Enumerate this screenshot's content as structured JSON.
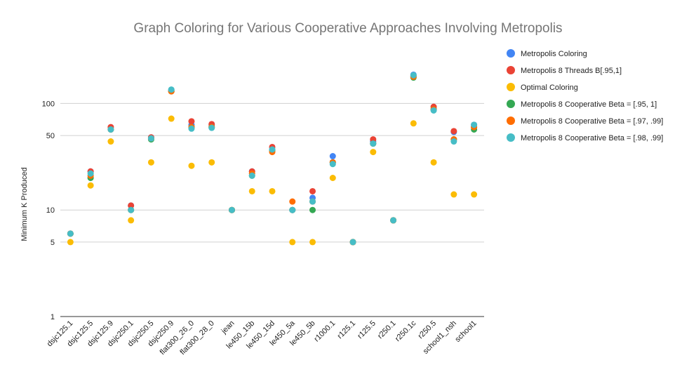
{
  "chart_data": {
    "type": "scatter",
    "title": "Graph Coloring for Various Cooperative Approaches Involving Metropolis",
    "xlabel": "",
    "ylabel": "Minimum K Produced",
    "yscale": "log",
    "ylim": [
      1,
      300
    ],
    "yticks": [
      1,
      5,
      10,
      50,
      100
    ],
    "grid": true,
    "legend_position": "right",
    "categories": [
      "dsjc125.1",
      "dsjc125.5",
      "dsjc125.9",
      "dsjc250.1",
      "dsjc250.5",
      "dsjc250.9",
      "flat300_26_0",
      "flat300_28_0",
      "jean",
      "le450_15b",
      "le450_15d",
      "le450_5a",
      "le450_5b",
      "r1000.1",
      "r125.1",
      "r125.5",
      "r250.1",
      "r250.1c",
      "r250.5",
      "school1_nsh",
      "school1"
    ],
    "series": [
      {
        "name": "Metropolis Coloring",
        "color": "#4285f4",
        "values": [
          6,
          23,
          57,
          11,
          48,
          133,
          63,
          63,
          10,
          23,
          37,
          10,
          13,
          32,
          5,
          44,
          8,
          186,
          88,
          54,
          63
        ]
      },
      {
        "name": "Metropolis 8 Threads B[.95,1]",
        "color": "#ea4335",
        "values": [
          6,
          23,
          60,
          11,
          48,
          130,
          68,
          64,
          10,
          23,
          39,
          10,
          15,
          28,
          5,
          46,
          8,
          180,
          93,
          55,
          60
        ]
      },
      {
        "name": "Optimal Coloring",
        "color": "#fbbc04",
        "values": [
          5,
          17,
          44,
          8,
          28,
          72,
          26,
          28,
          10,
          15,
          15,
          5,
          5,
          20,
          5,
          35,
          8,
          65,
          28,
          14,
          14
        ]
      },
      {
        "name": "Metropolis 8 Cooperative Beta = [.95, 1]",
        "color": "#34a853",
        "values": [
          6,
          20,
          57,
          10,
          46,
          130,
          60,
          60,
          10,
          21,
          36,
          10,
          10,
          28,
          5,
          42,
          8,
          175,
          88,
          46,
          57
        ]
      },
      {
        "name": "Metropolis 8 Cooperative Beta = [.97, .99]",
        "color": "#ff6d01",
        "values": [
          6,
          21,
          57,
          10,
          47,
          130,
          60,
          60,
          10,
          22,
          35,
          12,
          12,
          28,
          5,
          42,
          8,
          178,
          88,
          46,
          60
        ]
      },
      {
        "name": "Metropolis 8 Cooperative Beta = [.98, .99]",
        "color": "#46bdc6",
        "values": [
          6,
          22,
          57,
          10,
          47,
          135,
          58,
          59,
          10,
          21,
          37,
          10,
          12,
          27,
          5,
          42,
          8,
          184,
          86,
          44,
          63
        ]
      }
    ]
  }
}
